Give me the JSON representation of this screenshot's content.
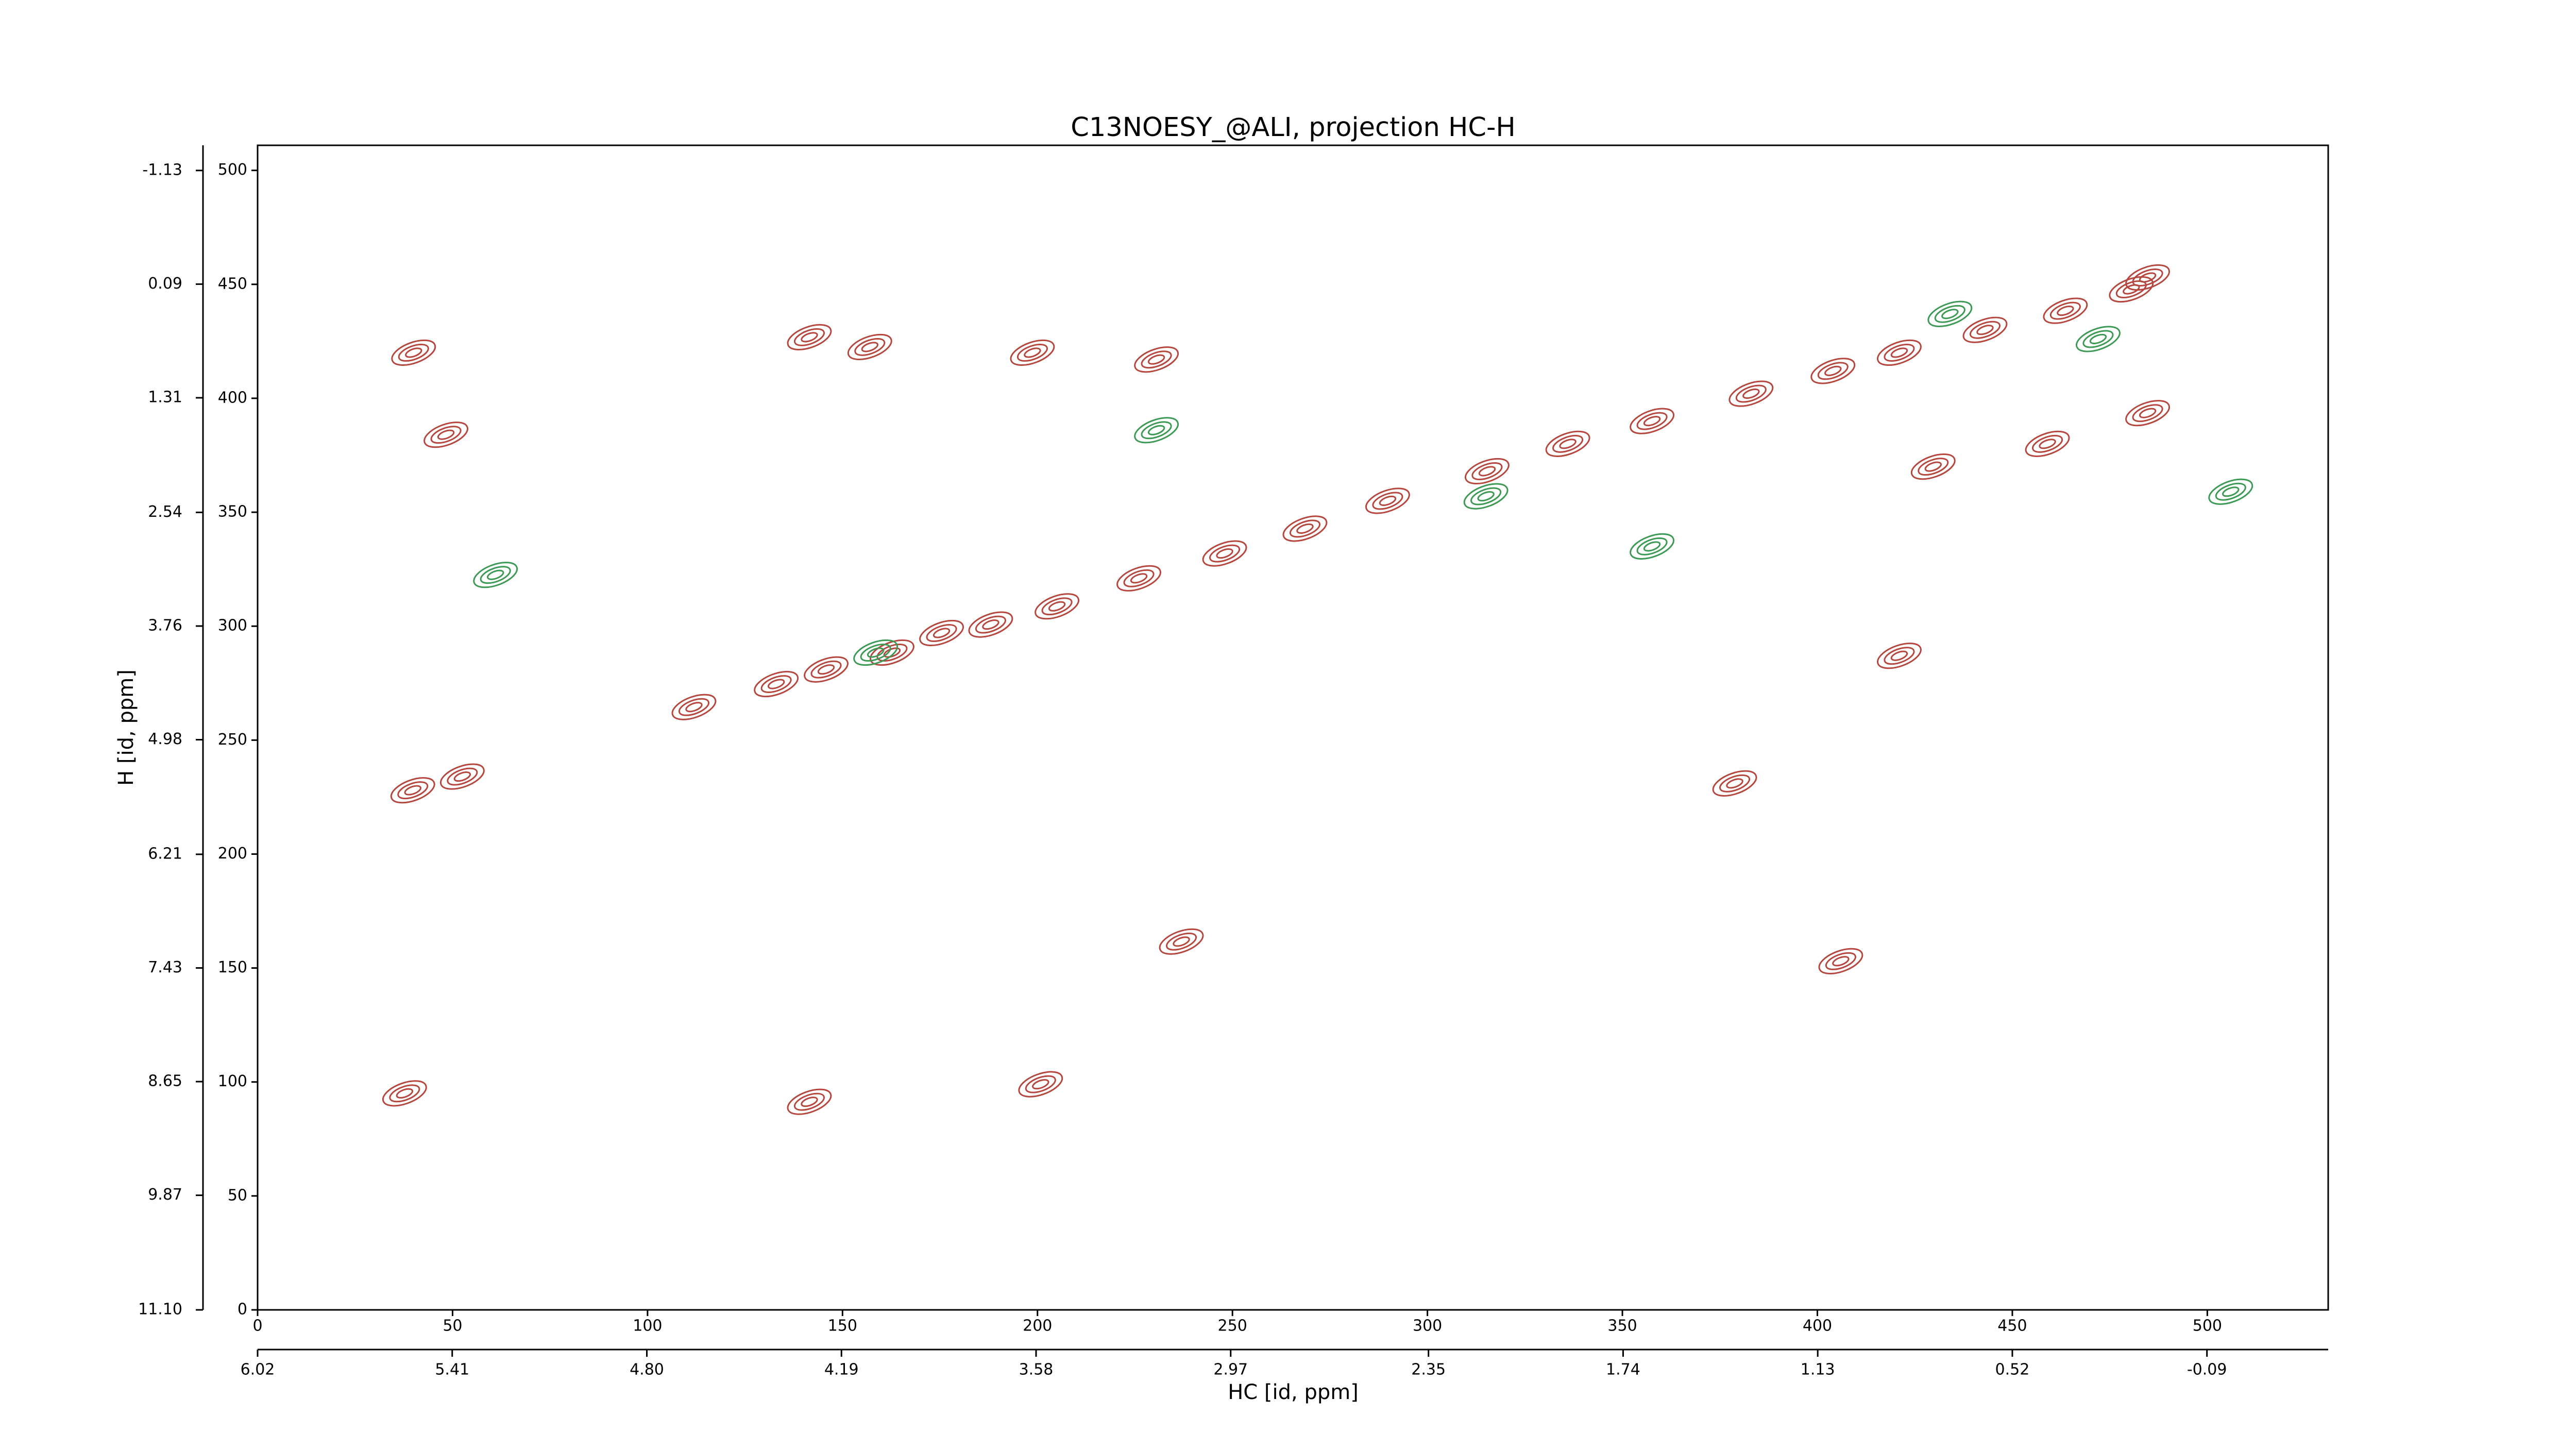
{
  "chart_data": {
    "type": "scatter",
    "title": "C13NOESY_@ALI, projection HC-H",
    "x_label": "HC [id, ppm]",
    "y_label": "H [id, ppm]",
    "xlim": [
      0,
      531
    ],
    "ylim": [
      0,
      511
    ],
    "xticks": [
      0,
      50,
      100,
      150,
      200,
      250,
      300,
      350,
      400,
      450,
      500
    ],
    "yticks": [
      0,
      50,
      100,
      150,
      200,
      250,
      300,
      350,
      400,
      450,
      500
    ],
    "x2lim": [
      6.02,
      -0.47
    ],
    "x2ticks": [
      6.02,
      5.41,
      {
        "value": 4.8,
        "label": "4.80"
      },
      4.19,
      3.58,
      2.97,
      2.35,
      1.74,
      1.13,
      0.52,
      -0.09
    ],
    "y2lim": [
      11.1,
      -1.4
    ],
    "y2ticks": [
      {
        "value": 11.1,
        "label": "11.10"
      },
      9.87,
      8.65,
      7.43,
      6.21,
      4.98,
      3.76,
      2.54,
      1.31,
      0.09,
      -1.13
    ],
    "series": [
      {
        "color": "#b5473f",
        "x": [
          39.8,
          52.5,
          111.9,
          133.0,
          145.8,
          162.7,
          175.4,
          188.0,
          205.0,
          226.0,
          248.0,
          268.6,
          289.8,
          315.3,
          336.0,
          357.6,
          383.0,
          404.0,
          421.0,
          443.0,
          463.6,
          480.5,
          484.7,
          40.0,
          48.3,
          200.8,
          236.9,
          378.8,
          406.0,
          421.0,
          459.0,
          429.7,
          230.5,
          141.5,
          157.0,
          198.7,
          484.7,
          37.7,
          141.5
        ],
        "values": [
          228.0,
          234.0,
          264.5,
          274.6,
          281.0,
          288.4,
          297.0,
          300.7,
          308.7,
          321.0,
          331.9,
          342.8,
          355.0,
          368.0,
          380.0,
          390.0,
          402.0,
          412.0,
          420.0,
          430.0,
          438.4,
          447.8,
          453.0,
          420.0,
          384.0,
          99.0,
          161.6,
          231.0,
          153.0,
          287.0,
          380.0,
          370.0,
          417.0,
          426.8,
          422.5,
          420.0,
          393.5,
          95.0,
          91.3
        ]
      },
      {
        "color": "#3d9a55",
        "x": [
          230.5,
          315.0,
          357.6,
          434.0,
          158.5,
          472.0,
          61.0,
          506.0
        ],
        "values": [
          386.0,
          357.0,
          335.0,
          437.0,
          288.4,
          426.0,
          322.5,
          359.0
        ]
      }
    ]
  }
}
